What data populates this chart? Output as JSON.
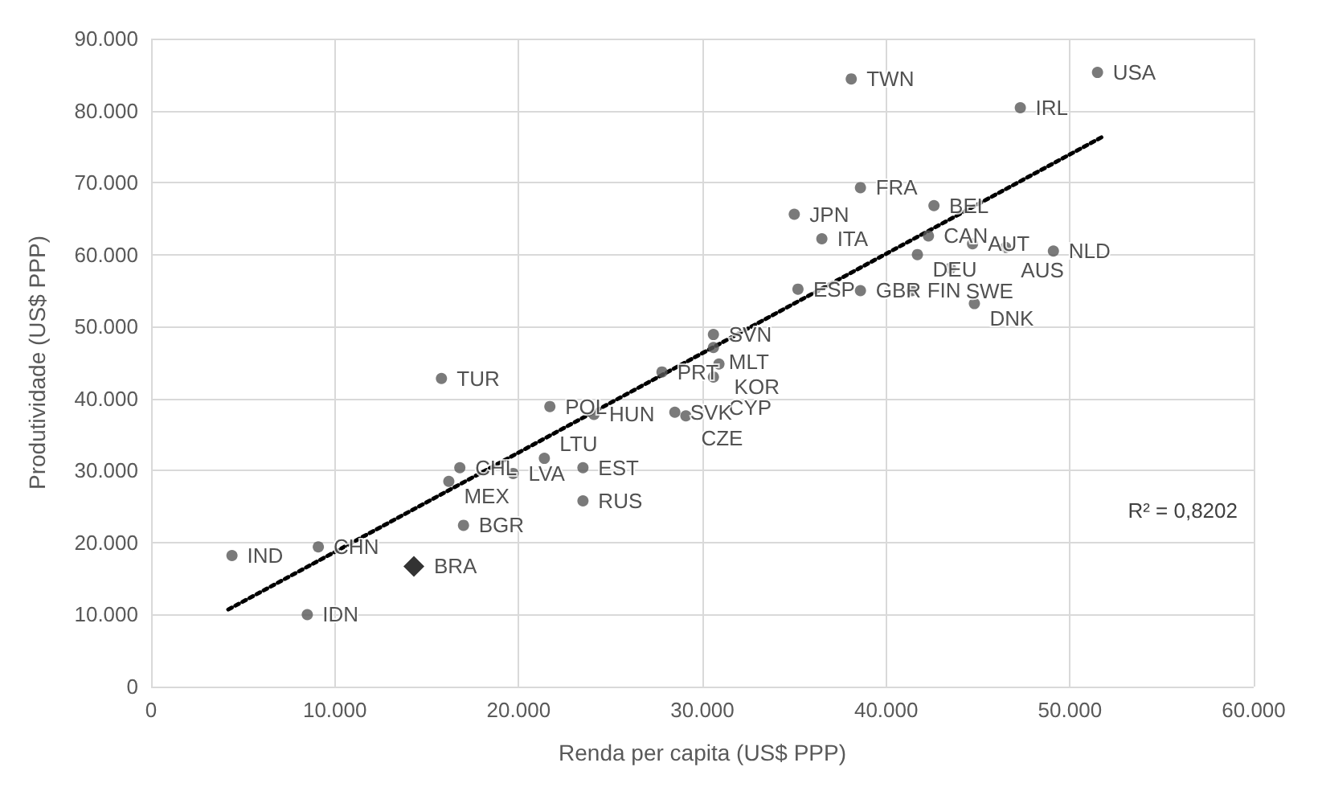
{
  "chart_data": {
    "type": "scatter",
    "xlabel": "Renda per capita (US$ PPP)",
    "ylabel": "Produtividade (US$ PPP)",
    "xlim": [
      0,
      60000
    ],
    "xticks": [
      0,
      {
        "value": 10000,
        "label": "10.000"
      },
      {
        "value": 20000,
        "label": "20.000"
      },
      {
        "value": 30000,
        "label": "30.000"
      },
      {
        "value": 40000,
        "label": "40.000"
      },
      {
        "value": 50000,
        "label": "50.000"
      },
      {
        "value": 60000,
        "label": "60.000"
      }
    ],
    "ylim": [
      0,
      90000
    ],
    "yticks": [
      0,
      {
        "value": 10000,
        "label": "10.000"
      },
      {
        "value": 20000,
        "label": "20.000"
      },
      {
        "value": 30000,
        "label": "30.000"
      },
      {
        "value": 40000,
        "label": "40.000"
      },
      {
        "value": 50000,
        "label": "50.000"
      },
      {
        "value": 60000,
        "label": "60.000"
      },
      {
        "value": 70000,
        "label": "70.000"
      },
      {
        "value": 80000,
        "label": "80.000"
      },
      {
        "value": 90000,
        "label": "90.000"
      }
    ],
    "grid": true,
    "series": [
      {
        "color": "#595959",
        "marker": "circle",
        "x": [
          51500,
          38100,
          47300,
          38600,
          35000,
          36500,
          42600,
          42300,
          44700,
          46500,
          49100,
          41700,
          43500,
          35200,
          38600,
          41400,
          44800,
          30600,
          30600,
          30900,
          27800,
          30600,
          15800,
          21700,
          24100,
          28500,
          29100,
          16800,
          16200,
          19700,
          21400,
          23500,
          23500,
          17000,
          9100,
          4400,
          8500
        ],
        "values": [
          85300,
          84400,
          80400,
          69300,
          65600,
          62200,
          66800,
          62600,
          61500,
          61000,
          60500,
          60000,
          58100,
          55200,
          55000,
          55000,
          53200,
          48900,
          47100,
          44800,
          43700,
          43000,
          42800,
          38900,
          37800,
          38100,
          37600,
          30400,
          28500,
          29600,
          31700,
          30400,
          25800,
          22400,
          19400,
          18200,
          10000
        ],
        "value_labels": [
          "USA",
          "TWN",
          "IRL",
          "FRA",
          "JPN",
          "ITA",
          "BEL",
          "CAN",
          "AUT",
          "AUS",
          "NLD",
          "DEU",
          "SWE",
          "ESP",
          "GBR",
          "FIN",
          "DNK",
          "SVN",
          "MLT",
          "KOR",
          "PRT",
          "CYP",
          "TUR",
          "POL",
          "HUN",
          "SVK",
          "CZE",
          "CHL",
          "MEX",
          "LVA",
          "LTU",
          "EST",
          "RUS",
          "BGR",
          "CHN",
          "IND",
          "IDN"
        ]
      },
      {
        "color": "#000000",
        "marker": "diamond",
        "x": [
          14300
        ],
        "values": [
          16700
        ],
        "value_labels": [
          "BRA"
        ]
      },
      {
        "type": "line",
        "color": "#000000",
        "marker": "none",
        "line_style": "dotted",
        "x": [
          4200,
          51800
        ],
        "values": [
          10700,
          76400
        ]
      }
    ],
    "annotations": [
      "R² = 0,8202"
    ]
  }
}
